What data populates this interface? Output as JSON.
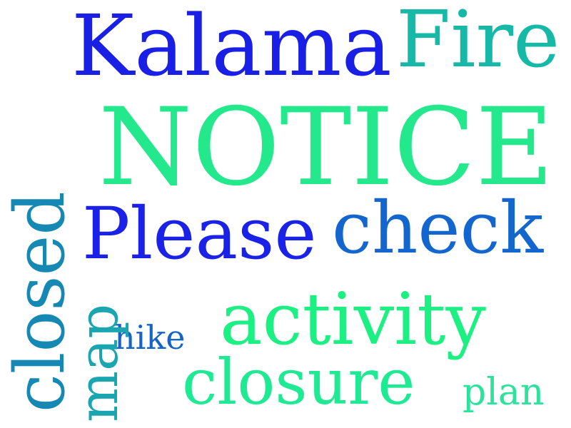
{
  "word_cloud": {
    "words": {
      "kalama": {
        "text": "Kalama",
        "color": "#1a1fe6"
      },
      "fire": {
        "text": "Fire",
        "color": "#16b9a7"
      },
      "notice": {
        "text": "NOTICE",
        "color": "#23e88c"
      },
      "please": {
        "text": "Please",
        "color": "#1a22e8"
      },
      "check": {
        "text": "check",
        "color": "#1466cf"
      },
      "activity": {
        "text": "activity",
        "color": "#1cf083"
      },
      "closure": {
        "text": "closure",
        "color": "#1eea93"
      },
      "plan": {
        "text": "plan",
        "color": "#2ce39b"
      },
      "hike": {
        "text": "hike",
        "color": "#1564c7"
      },
      "closed": {
        "text": "closed",
        "color": "#1688b4"
      },
      "map": {
        "text": "map",
        "color": "#19a6b0"
      }
    }
  }
}
